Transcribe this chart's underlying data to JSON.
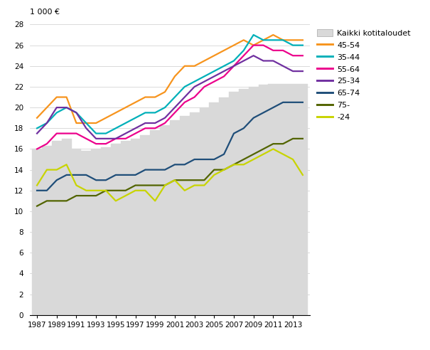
{
  "years": [
    1987,
    1988,
    1989,
    1990,
    1991,
    1992,
    1993,
    1994,
    1995,
    1996,
    1997,
    1998,
    1999,
    2000,
    2001,
    2002,
    2003,
    2004,
    2005,
    2006,
    2007,
    2008,
    2009,
    2010,
    2011,
    2012,
    2013,
    2014
  ],
  "bar_all": [
    16.0,
    16.3,
    16.8,
    17.0,
    16.0,
    15.8,
    16.0,
    16.2,
    16.5,
    16.8,
    17.0,
    17.3,
    17.8,
    18.3,
    18.8,
    19.2,
    19.5,
    20.0,
    20.5,
    21.0,
    21.5,
    21.8,
    22.0,
    22.2,
    22.3,
    22.3,
    22.3,
    22.3
  ],
  "line_45_54": [
    19.0,
    20.0,
    21.0,
    21.0,
    18.5,
    18.5,
    18.5,
    19.0,
    19.5,
    20.0,
    20.5,
    21.0,
    21.0,
    21.5,
    23.0,
    24.0,
    24.0,
    24.5,
    25.0,
    25.5,
    26.0,
    26.5,
    26.0,
    26.5,
    27.0,
    26.5,
    26.5,
    26.5
  ],
  "line_35_44": [
    18.0,
    18.5,
    19.5,
    20.0,
    19.5,
    18.5,
    17.5,
    17.5,
    18.0,
    18.5,
    19.0,
    19.5,
    19.5,
    20.0,
    21.0,
    22.0,
    22.5,
    23.0,
    23.5,
    24.0,
    24.5,
    25.5,
    27.0,
    26.5,
    26.5,
    26.5,
    26.0,
    26.0
  ],
  "line_55_64": [
    16.0,
    16.5,
    17.5,
    17.5,
    17.5,
    17.0,
    16.5,
    16.5,
    17.0,
    17.0,
    17.5,
    18.0,
    18.0,
    18.5,
    19.5,
    20.5,
    21.0,
    22.0,
    22.5,
    23.0,
    24.0,
    25.0,
    26.0,
    26.0,
    25.5,
    25.5,
    25.0,
    25.0
  ],
  "line_25_34": [
    17.5,
    18.5,
    20.0,
    20.0,
    19.5,
    18.0,
    17.0,
    17.0,
    17.0,
    17.5,
    18.0,
    18.5,
    18.5,
    19.0,
    20.0,
    21.0,
    22.0,
    22.5,
    23.0,
    23.5,
    24.0,
    24.5,
    25.0,
    24.5,
    24.5,
    24.0,
    23.5,
    23.5
  ],
  "line_65_74": [
    12.0,
    12.0,
    13.0,
    13.5,
    13.5,
    13.5,
    13.0,
    13.0,
    13.5,
    13.5,
    13.5,
    14.0,
    14.0,
    14.0,
    14.5,
    14.5,
    15.0,
    15.0,
    15.0,
    15.5,
    17.5,
    18.0,
    19.0,
    19.5,
    20.0,
    20.5,
    20.5,
    20.5
  ],
  "line_75_": [
    10.5,
    11.0,
    11.0,
    11.0,
    11.5,
    11.5,
    11.5,
    12.0,
    12.0,
    12.0,
    12.5,
    12.5,
    12.5,
    12.5,
    13.0,
    13.0,
    13.0,
    13.0,
    14.0,
    14.0,
    14.5,
    15.0,
    15.5,
    16.0,
    16.5,
    16.5,
    17.0,
    17.0
  ],
  "line__24": [
    12.5,
    14.0,
    14.0,
    14.5,
    12.5,
    12.0,
    12.0,
    12.0,
    11.0,
    11.5,
    12.0,
    12.0,
    11.0,
    12.5,
    13.0,
    12.0,
    12.5,
    12.5,
    13.5,
    14.0,
    14.5,
    14.5,
    15.0,
    15.5,
    16.0,
    15.5,
    15.0,
    13.5
  ],
  "color_45_54": "#f7941d",
  "color_35_44": "#00b0b9",
  "color_55_64": "#ec008c",
  "color_25_34": "#7030a0",
  "color_65_74": "#1f4e79",
  "color_75_": "#526400",
  "color__24": "#c8d400",
  "color_bar": "#d9d9d9",
  "bar_edgecolor": "#d9d9d9",
  "ylabel": "1 000 €",
  "ylim": [
    0,
    28
  ],
  "yticks": [
    0,
    2,
    4,
    6,
    8,
    10,
    12,
    14,
    16,
    18,
    20,
    22,
    24,
    26,
    28
  ],
  "xticks": [
    1987,
    1989,
    1991,
    1993,
    1995,
    1997,
    1999,
    2001,
    2003,
    2005,
    2007,
    2009,
    2011,
    2013
  ],
  "xlim": [
    1986.3,
    2014.7
  ],
  "legend_labels": [
    "Kaikki kotitaloudet",
    "45-54",
    "35-44",
    "55-64",
    "25-34",
    "65-74",
    "75-",
    "-24"
  ],
  "linewidth": 1.6
}
